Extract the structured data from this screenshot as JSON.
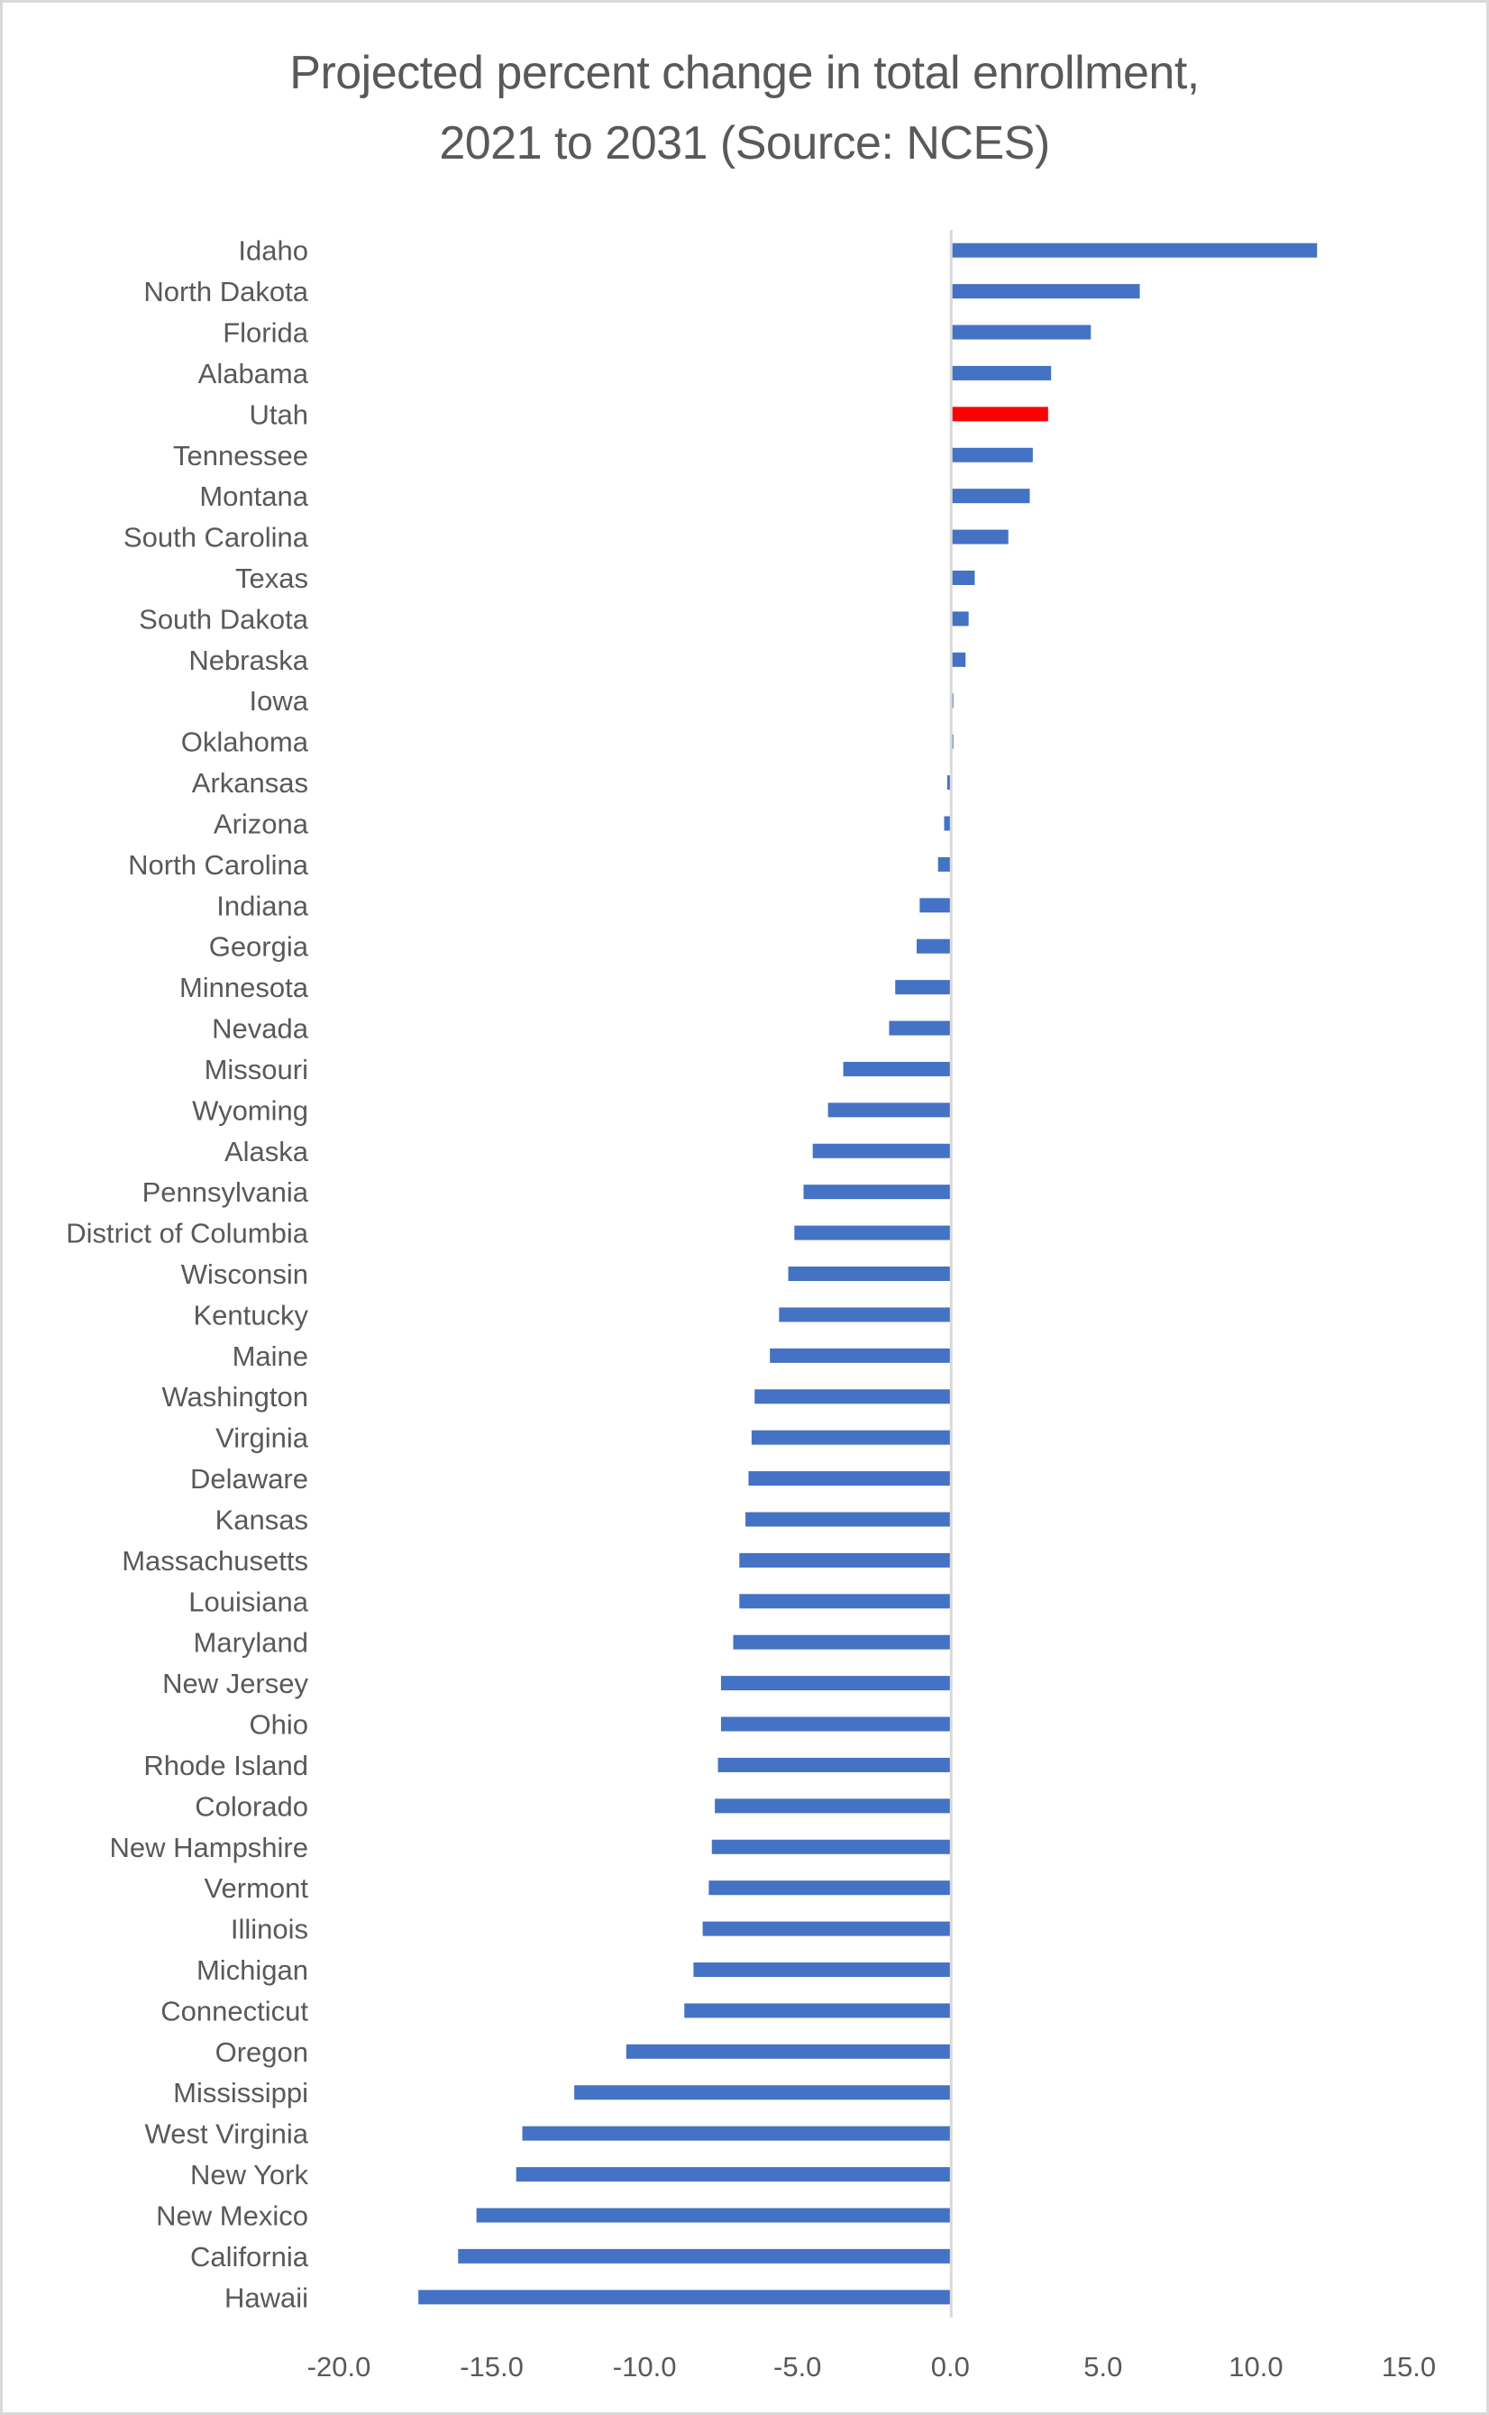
{
  "chart_data": {
    "type": "bar",
    "orientation": "horizontal",
    "title": "Projected percent change in total enrollment, 2021 to 2031 (Source: NCES)",
    "title_lines": [
      "Projected percent change in total enrollment,",
      "2021 to 2031 (Source: NCES)"
    ],
    "xlabel": "",
    "ylabel": "",
    "xlim": [
      -20,
      15
    ],
    "x_ticks": [
      -20,
      -15,
      -10,
      -5,
      0,
      5,
      10,
      15
    ],
    "x_tick_labels": [
      "-20.0",
      "-15.0",
      "-10.0",
      "-5.0",
      "0.0",
      "5.0",
      "10.0",
      "15.0"
    ],
    "grid": false,
    "legend": "none",
    "colors": {
      "default": "#4472c4",
      "highlight": "#ff0000",
      "axis": "#d9d9d9",
      "text": "#595959"
    },
    "highlight_category": "Utah",
    "categories": [
      "Idaho",
      "North Dakota",
      "Florida",
      "Alabama",
      "Utah",
      "Tennessee",
      "Montana",
      "South Carolina",
      "Texas",
      "South Dakota",
      "Nebraska",
      "Iowa",
      "Oklahoma",
      "Arkansas",
      "Arizona",
      "North Carolina",
      "Indiana",
      "Georgia",
      "Minnesota",
      "Nevada",
      "Missouri",
      "Wyoming",
      "Alaska",
      "Pennsylvania",
      "District of Columbia",
      "Wisconsin",
      "Kentucky",
      "Maine",
      "Washington",
      "Virginia",
      "Delaware",
      "Kansas",
      "Massachusetts",
      "Louisiana",
      "Maryland",
      "New Jersey",
      "Ohio",
      "Rhode Island",
      "Colorado",
      "New Hampshire",
      "Vermont",
      "Illinois",
      "Michigan",
      "Connecticut",
      "Oregon",
      "Mississippi",
      "West Virginia",
      "New York",
      "New Mexico",
      "California",
      "Hawaii"
    ],
    "values": [
      12.0,
      6.2,
      4.6,
      3.3,
      3.2,
      2.7,
      2.6,
      1.9,
      0.8,
      0.6,
      0.5,
      0.1,
      0.1,
      -0.1,
      -0.2,
      -0.4,
      -1.0,
      -1.1,
      -1.8,
      -2.0,
      -3.5,
      -4.0,
      -4.5,
      -4.8,
      -5.1,
      -5.3,
      -5.6,
      -5.9,
      -6.4,
      -6.5,
      -6.6,
      -6.7,
      -6.9,
      -6.9,
      -7.1,
      -7.5,
      -7.5,
      -7.6,
      -7.7,
      -7.8,
      -7.9,
      -8.1,
      -8.4,
      -8.7,
      -10.6,
      -12.3,
      -14.0,
      -14.2,
      -15.5,
      -16.1,
      -17.4
    ]
  }
}
